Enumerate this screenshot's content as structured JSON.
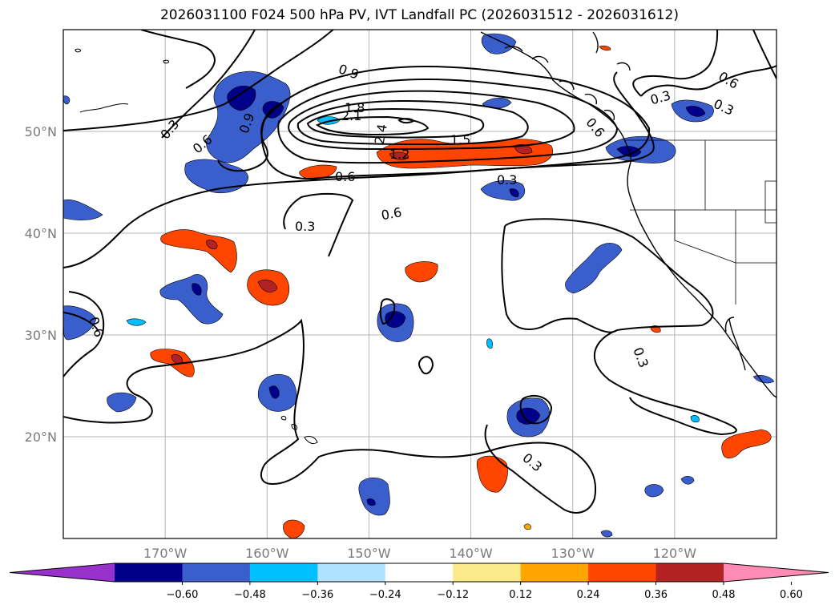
{
  "title": "2026031100 F024 500 hPa PV, IVT Landfall PC (2026031512 - 2026031612)",
  "map": {
    "lon_range": [
      -180,
      -110
    ],
    "lat_range": [
      10,
      60
    ],
    "lon_ticks": [
      -170,
      -160,
      -150,
      -140,
      -130,
      -120
    ],
    "lon_labels": [
      "170°W",
      "160°W",
      "150°W",
      "140°W",
      "130°W",
      "120°W"
    ],
    "lat_ticks": [
      20,
      30,
      40,
      50
    ],
    "lat_labels": [
      "20°N",
      "30°N",
      "40°N",
      "50°N"
    ],
    "grid": true
  },
  "contour_labels": [
    "0.9",
    "1.8",
    "2.1",
    "2.4",
    "1.2",
    "1.5",
    "0.3",
    "0.6",
    "0.9",
    "0.6",
    "0.3",
    "0.6",
    "0.6",
    "0.3",
    "0.6",
    "0.3",
    "0.3",
    "0.6",
    "0.3"
  ],
  "colorbar": {
    "ticks": [
      "−0.60",
      "−0.48",
      "−0.36",
      "−0.24",
      "−0.12",
      "0.12",
      "0.24",
      "0.36",
      "0.48",
      "0.60"
    ],
    "colors": [
      "#9932cc",
      "#00008b",
      "#3a5fcd",
      "#00bfff",
      "#b0e2ff",
      "#ffffff",
      "#fce98a",
      "#ffa500",
      "#ff4500",
      "#b22222",
      "#ff8cb4"
    ],
    "extend": "both"
  }
}
